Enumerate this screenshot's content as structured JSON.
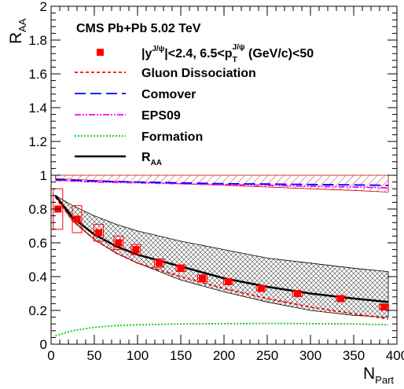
{
  "chart_data": {
    "type": "scatter",
    "title": "CMS Pb+Pb 5.02 TeV",
    "xlabel": "N",
    "xlabel_sub": "Part",
    "ylabel": "R",
    "ylabel_sub": "AA",
    "xlim": [
      0,
      400
    ],
    "ylim": [
      0,
      2
    ],
    "x_ticks": [
      0,
      50,
      100,
      150,
      200,
      250,
      300,
      350,
      400
    ],
    "y_ticks": [
      0,
      0.2,
      0.4,
      0.6,
      0.8,
      1,
      1.2,
      1.4,
      1.6,
      1.8,
      2
    ],
    "y_tick_labels": [
      "0",
      "0.2",
      "0.4",
      "0.6",
      "0.8",
      "1",
      "1.2",
      "1.4",
      "1.6",
      "1.8",
      "2"
    ],
    "grid": false,
    "legend_position": "top-left",
    "legend": [
      {
        "key": "data",
        "pre": "|y",
        "sup1": "J/ψ",
        "mid": "|<2.4, 6.5<p",
        "sub": "T",
        "sup2": "J/ψ",
        "post": " (GeV/c)<50"
      },
      {
        "key": "gluon",
        "label": "Gluon Dissociation"
      },
      {
        "key": "comover",
        "label": "Comover"
      },
      {
        "key": "eps09",
        "label": "EPS09"
      },
      {
        "key": "formation",
        "label": "Formation"
      },
      {
        "key": "raa",
        "label": "R",
        "sub": "AA"
      }
    ],
    "data_points": {
      "name": "CMS data",
      "color": "#ff0000",
      "x": [
        8,
        30,
        55,
        78,
        98,
        125,
        150,
        175,
        205,
        243,
        285,
        335,
        385
      ],
      "y": [
        0.8,
        0.74,
        0.66,
        0.6,
        0.56,
        0.48,
        0.45,
        0.39,
        0.37,
        0.33,
        0.3,
        0.27,
        0.22
      ],
      "syst_half": [
        0.12,
        0.08,
        0.05,
        0.04,
        0.03,
        0.025,
        0.02,
        0.02,
        0.015,
        0.015,
        0.015,
        0.015,
        0.015
      ]
    },
    "curves": {
      "gluon": {
        "color": "#ff0000",
        "dash": "4,3",
        "x": [
          5,
          25,
          50,
          75,
          100,
          150,
          200,
          250,
          300,
          350,
          390
        ],
        "y": [
          0.87,
          0.73,
          0.62,
          0.54,
          0.48,
          0.4,
          0.33,
          0.27,
          0.22,
          0.18,
          0.15
        ]
      },
      "comover": {
        "color": "#0000ff",
        "dash": "14,6",
        "x": [
          5,
          50,
          100,
          150,
          200,
          250,
          300,
          350,
          390
        ],
        "y": [
          0.975,
          0.965,
          0.96,
          0.955,
          0.95,
          0.948,
          0.945,
          0.943,
          0.94
        ]
      },
      "eps09": {
        "color": "#ff00ff",
        "dash": "8,2,2,2,2,2",
        "x": [
          5,
          50,
          100,
          150,
          200,
          250,
          300,
          350,
          390
        ],
        "y": [
          0.97,
          0.96,
          0.955,
          0.95,
          0.945,
          0.94,
          0.935,
          0.93,
          0.925
        ]
      },
      "formation": {
        "color": "#00cc00",
        "dash": "2,2",
        "x": [
          5,
          25,
          50,
          75,
          100,
          150,
          200,
          250,
          300,
          350,
          390
        ],
        "y": [
          0.05,
          0.08,
          0.1,
          0.11,
          0.115,
          0.12,
          0.122,
          0.123,
          0.122,
          0.12,
          0.115
        ]
      },
      "raa": {
        "color": "#000000",
        "x": [
          5,
          25,
          50,
          75,
          100,
          150,
          200,
          250,
          300,
          350,
          390
        ],
        "y": [
          0.88,
          0.75,
          0.65,
          0.58,
          0.53,
          0.46,
          0.39,
          0.34,
          0.3,
          0.27,
          0.25
        ]
      }
    },
    "bands": {
      "eps09_band": {
        "color": "#cc0000",
        "hatch": "diagonal",
        "x": [
          5,
          50,
          100,
          150,
          200,
          250,
          300,
          350,
          390
        ],
        "upper": [
          1.0,
          1.0,
          1.0,
          1.0,
          1.0,
          1.0,
          1.0,
          1.0,
          1.0
        ],
        "lower": [
          0.98,
          0.97,
          0.96,
          0.95,
          0.94,
          0.93,
          0.92,
          0.91,
          0.9
        ]
      },
      "raa_band": {
        "color": "#000000",
        "hatch": "cross",
        "x": [
          5,
          25,
          50,
          75,
          100,
          150,
          200,
          250,
          300,
          350,
          390
        ],
        "upper": [
          0.88,
          0.82,
          0.76,
          0.71,
          0.67,
          0.61,
          0.56,
          0.51,
          0.48,
          0.45,
          0.43
        ],
        "lower": [
          0.88,
          0.73,
          0.62,
          0.54,
          0.48,
          0.38,
          0.31,
          0.25,
          0.2,
          0.17,
          0.16
        ]
      }
    }
  }
}
